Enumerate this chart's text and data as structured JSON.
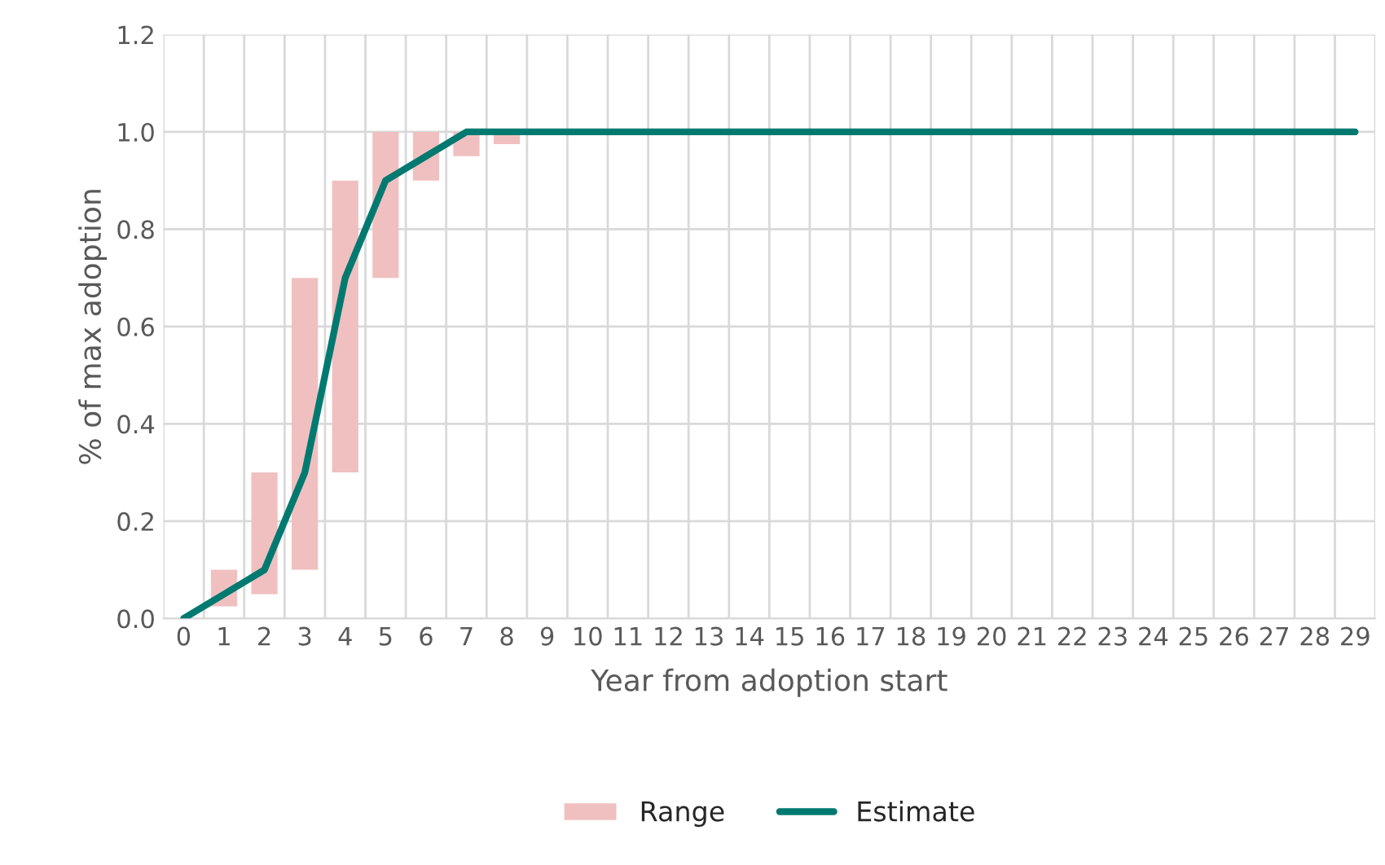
{
  "chart_data": {
    "type": "bar",
    "xlabel": "Year from adoption start",
    "ylabel": "% of max adoption",
    "categories": [
      "0",
      "1",
      "2",
      "3",
      "4",
      "5",
      "6",
      "7",
      "8",
      "9",
      "10",
      "11",
      "12",
      "13",
      "14",
      "15",
      "16",
      "17",
      "18",
      "19",
      "20",
      "21",
      "22",
      "23",
      "24",
      "25",
      "26",
      "27",
      "28",
      "29"
    ],
    "series": [
      {
        "name": "Range",
        "color": "#f0c0c0",
        "base": [
          null,
          0.025,
          0.05,
          0.1,
          0.3,
          0.7,
          0.9,
          0.95,
          0.975,
          null,
          null,
          null,
          null,
          null,
          null,
          null,
          null,
          null,
          null,
          null,
          null,
          null,
          null,
          null,
          null,
          null,
          null,
          null,
          null,
          null
        ],
        "values": [
          null,
          0.075,
          0.25,
          0.6,
          0.6,
          0.3,
          0.1,
          0.05,
          0.025,
          null,
          null,
          null,
          null,
          null,
          null,
          null,
          null,
          null,
          null,
          null,
          null,
          null,
          null,
          null,
          null,
          null,
          null,
          null,
          null,
          null
        ]
      },
      {
        "name": "Estimate",
        "type": "line",
        "color": "#007a70",
        "values": [
          0,
          0.05,
          0.1,
          0.3,
          0.7,
          0.9,
          0.95,
          1,
          1,
          1,
          1,
          1,
          1,
          1,
          1,
          1,
          1,
          1,
          1,
          1,
          1,
          1,
          1,
          1,
          1,
          1,
          1,
          1,
          1,
          1
        ]
      }
    ],
    "ylim": [
      0,
      1.2
    ],
    "yticks": [
      {
        "value": 0,
        "label": "0.0"
      },
      {
        "value": 0.2,
        "label": "0.2"
      },
      {
        "value": 0.4,
        "label": "0.4"
      },
      {
        "value": 0.6,
        "label": "0.6"
      },
      {
        "value": 0.8,
        "label": "0.8"
      },
      {
        "value": 1.0,
        "label": "1.0"
      },
      {
        "value": 1.2,
        "label": "1.2"
      }
    ],
    "grid": true,
    "legend": "bottom"
  }
}
